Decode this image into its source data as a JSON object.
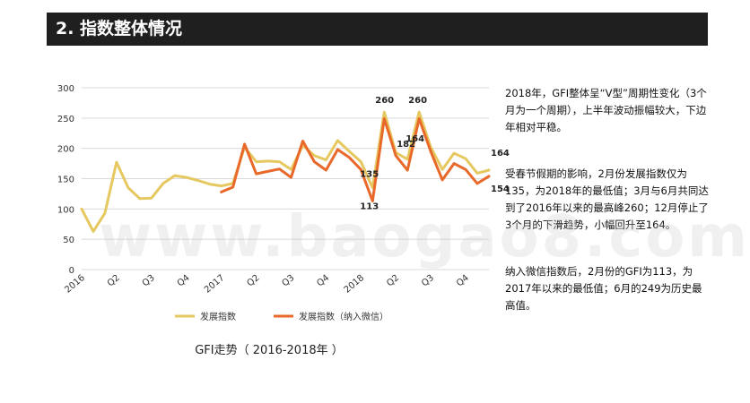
{
  "header": {
    "title": "2. 指数整体情况"
  },
  "paragraphs": [
    "2018年，GFI整体呈“V型”周期性变化（3个月为一个周期），上半年波动振幅较大，下边年相对平稳。",
    "受春节假期的影响，2月份发展指数仅为135，为2018年的最低值；3月与6月共同达到了2016年以来的最高峰260；12月停止了3个月的下滑趋势，小幅回升至164。",
    "纳入微信指数后，2月份的GFI为113，为2017年以来的最低值；6月的249为历史最高值。"
  ],
  "caption": "GFI走势（ 2016-2018年 ）",
  "watermark": "www.baogao8.com",
  "chart_data": {
    "type": "line",
    "x_tick_labels": [
      "2016",
      "Q2",
      "Q3",
      "Q4",
      "2017",
      "Q2",
      "Q3",
      "Q4",
      "2018",
      "Q2",
      "Q3",
      "Q4"
    ],
    "y_ticks": [
      0,
      50,
      100,
      150,
      200,
      250,
      300
    ],
    "ylim": [
      0,
      300
    ],
    "grid": true,
    "legend_position": "bottom",
    "series": [
      {
        "name": "发展指数",
        "color": "#E6C860",
        "values": [
          100,
          63,
          93,
          177,
          135,
          117,
          118,
          142,
          155,
          152,
          147,
          141,
          138,
          142,
          202,
          178,
          179,
          178,
          165,
          205,
          188,
          181,
          213,
          195,
          178,
          135,
          260,
          193,
          182,
          260,
          202,
          165,
          192,
          183,
          159,
          164
        ]
      },
      {
        "name": "发展指数（纳入微信）",
        "color": "#E8692A",
        "start_index": 12,
        "values": [
          128,
          136,
          207,
          158,
          162,
          166,
          152,
          212,
          178,
          164,
          198,
          185,
          165,
          113,
          249,
          188,
          164,
          249,
          195,
          148,
          175,
          165,
          142,
          154
        ]
      }
    ],
    "annotations": [
      {
        "text": "260",
        "index": 26
      },
      {
        "text": "260",
        "index": 29
      },
      {
        "text": "182",
        "index": 28
      },
      {
        "text": "135",
        "index": 25
      },
      {
        "text": "164",
        "index": 35
      },
      {
        "text": "164",
        "index": 28
      },
      {
        "text": "113",
        "index": 25
      },
      {
        "text": "154",
        "index": 35
      }
    ]
  }
}
